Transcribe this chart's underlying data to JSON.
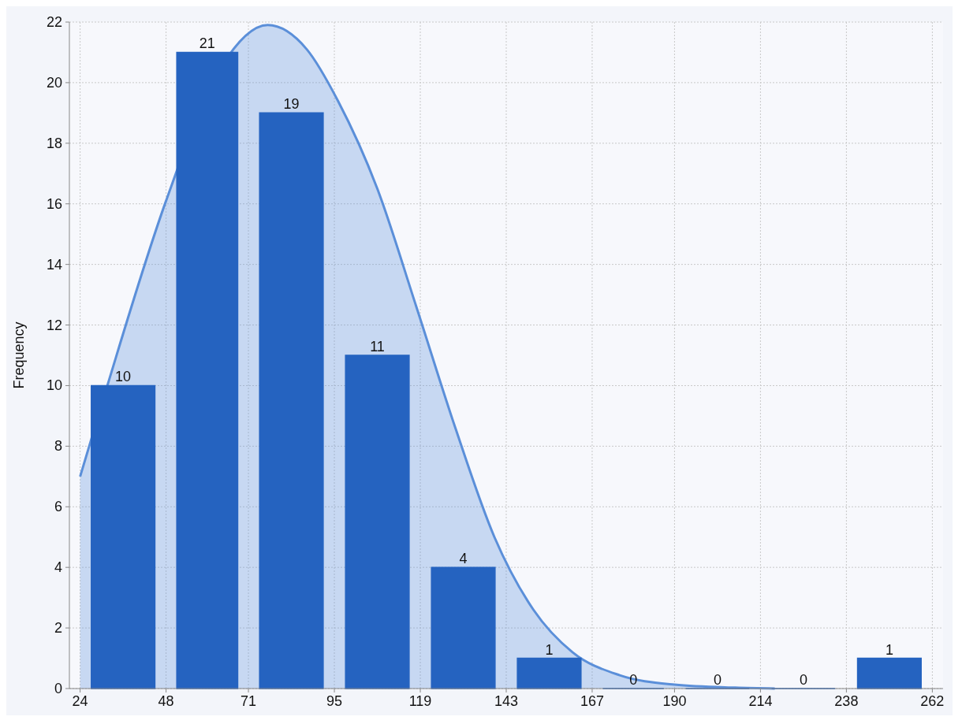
{
  "chart_data": {
    "type": "histogram",
    "ylabel": "Frequency",
    "bins": [
      24,
      48,
      71,
      95,
      119,
      143,
      167,
      190,
      214,
      238,
      262
    ],
    "values": [
      10,
      21,
      19,
      11,
      4,
      1,
      0,
      0,
      0,
      1
    ],
    "color": "#2563c0",
    "value_labels": [
      "10",
      "21",
      "19",
      "11",
      "4",
      "1",
      "0",
      "0",
      "0",
      "1"
    ],
    "series": [
      {
        "type": "area",
        "color": "#5b8fd9",
        "x": [
          24,
          31.6,
          48,
          63.3,
          76.4,
          87.3,
          96,
          107,
          117.9,
          128.8,
          139.7,
          150.6,
          161.5,
          174.7,
          190,
          207,
          218
        ],
        "values": [
          7,
          10,
          16.1,
          20.5,
          21.9,
          21.1,
          19.4,
          16.5,
          12.6,
          8.6,
          5,
          2.6,
          1.2,
          0.44,
          0.13,
          0.03,
          0
        ]
      }
    ],
    "xlim": [
      21,
      265
    ],
    "xticks": [
      24,
      48,
      71,
      95,
      119,
      143,
      167,
      190,
      214,
      238,
      262
    ],
    "ylim": [
      0,
      22
    ],
    "yticks": [
      0,
      2,
      4,
      6,
      8,
      10,
      12,
      14,
      16,
      18,
      20,
      22
    ],
    "grid": true
  }
}
